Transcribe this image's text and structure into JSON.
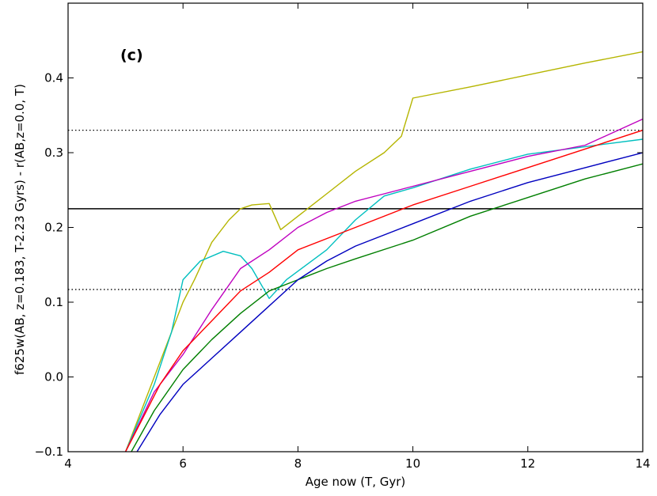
{
  "chart_data": {
    "type": "line",
    "panel_label": "(c)",
    "xlabel": "Age now (T, Gyr)",
    "ylabel": "f625w(AB, z=0.183, T-2.23 Gyrs) - r(AB,z=0.0, T)",
    "xlim": [
      4,
      14
    ],
    "ylim": [
      -0.1,
      0.5
    ],
    "x_ticks": [
      4,
      6,
      8,
      10,
      12,
      14
    ],
    "y_ticks": [
      -0.1,
      0.0,
      0.1,
      0.2,
      0.3,
      0.4
    ],
    "x_tick_labels": [
      "4",
      "6",
      "8",
      "10",
      "12",
      "14"
    ],
    "y_tick_labels": [
      "−0.1",
      "0.0",
      "0.1",
      "0.2",
      "0.3",
      "0.4"
    ],
    "grid": false,
    "hlines": [
      {
        "y": 0.225,
        "style": "solid",
        "color": "#000000"
      },
      {
        "y": 0.33,
        "style": "dotted",
        "color": "#000000"
      },
      {
        "y": 0.117,
        "style": "dotted",
        "color": "#000000"
      }
    ],
    "series": [
      {
        "color": "#b5b500",
        "x": [
          5.0,
          5.2,
          5.5,
          5.8,
          6.0,
          6.2,
          6.5,
          6.8,
          7.0,
          7.2,
          7.5,
          7.7,
          8.0,
          8.5,
          9.0,
          9.5,
          9.8,
          10.0,
          11.0,
          12.0,
          13.0,
          14.0
        ],
        "y": [
          -0.1,
          -0.06,
          0.0,
          0.06,
          0.1,
          0.13,
          0.18,
          0.21,
          0.225,
          0.23,
          0.232,
          0.197,
          0.215,
          0.245,
          0.275,
          0.3,
          0.322,
          0.373,
          0.388,
          0.404,
          0.42,
          0.435
        ]
      },
      {
        "color": "#00bfbf",
        "x": [
          5.0,
          5.5,
          5.8,
          6.0,
          6.3,
          6.7,
          7.0,
          7.2,
          7.5,
          7.8,
          8.5,
          9.0,
          9.5,
          10.0,
          11.0,
          12.0,
          13.0,
          14.0
        ],
        "y": [
          -0.1,
          -0.01,
          0.06,
          0.13,
          0.155,
          0.168,
          0.162,
          0.145,
          0.105,
          0.13,
          0.17,
          0.21,
          0.242,
          0.253,
          0.278,
          0.298,
          0.308,
          0.318
        ]
      },
      {
        "color": "#bf00bf",
        "x": [
          5.0,
          5.5,
          6.0,
          6.5,
          7.0,
          7.5,
          8.0,
          8.5,
          9.0,
          9.5,
          10.0,
          11.0,
          12.0,
          13.0,
          14.0
        ],
        "y": [
          -0.1,
          -0.02,
          0.03,
          0.09,
          0.145,
          0.17,
          0.2,
          0.22,
          0.235,
          0.245,
          0.255,
          0.275,
          0.295,
          0.31,
          0.345
        ]
      },
      {
        "color": "#ff0000",
        "x": [
          5.0,
          5.3,
          5.6,
          6.0,
          6.5,
          7.0,
          7.5,
          8.0,
          9.0,
          10.0,
          11.0,
          12.0,
          13.0,
          14.0
        ],
        "y": [
          -0.1,
          -0.055,
          -0.01,
          0.035,
          0.075,
          0.115,
          0.14,
          0.17,
          0.2,
          0.23,
          0.255,
          0.28,
          0.305,
          0.33
        ]
      },
      {
        "color": "#007f00",
        "x": [
          5.1,
          5.5,
          6.0,
          6.5,
          7.0,
          7.5,
          8.0,
          8.5,
          9.0,
          10.0,
          11.0,
          12.0,
          13.0,
          14.0
        ],
        "y": [
          -0.1,
          -0.045,
          0.01,
          0.05,
          0.085,
          0.115,
          0.13,
          0.145,
          0.158,
          0.183,
          0.215,
          0.24,
          0.265,
          0.285
        ]
      },
      {
        "color": "#0000bf",
        "x": [
          5.2,
          5.6,
          6.0,
          6.5,
          7.0,
          7.5,
          8.0,
          8.5,
          9.0,
          10.0,
          11.0,
          12.0,
          13.0,
          14.0
        ],
        "y": [
          -0.1,
          -0.05,
          -0.01,
          0.025,
          0.06,
          0.095,
          0.13,
          0.155,
          0.175,
          0.205,
          0.235,
          0.26,
          0.28,
          0.3
        ]
      }
    ]
  }
}
